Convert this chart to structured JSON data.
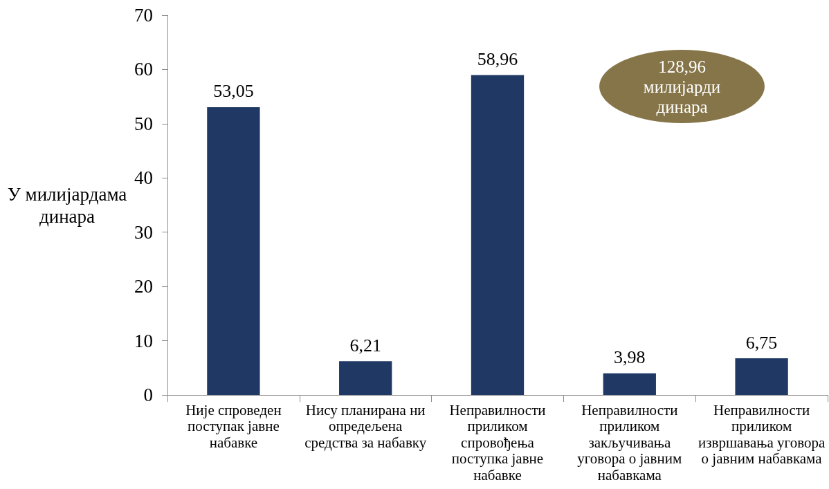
{
  "chart_data": {
    "type": "bar",
    "categories": [
      "Није спроведен поступак јавне набавке",
      "Нису планирана ни опредељена средства за набавку",
      "Неправилности приликом спровођења поступка јавне набавке",
      "Неправилности приликом закључивања уговора о јавним набавкама",
      "Неправилности приликом извршавања уговора о јавним набавкама"
    ],
    "values": [
      53.05,
      6.21,
      58.96,
      3.98,
      6.75
    ],
    "value_labels": [
      "53,05",
      "6,21",
      "58,96",
      "3,98",
      "6,75"
    ],
    "color": "#1f3864",
    "ylabel": "У милијардама динара",
    "ylim": [
      0,
      70
    ],
    "yticks": [
      0,
      10,
      20,
      30,
      40,
      50,
      60,
      70
    ],
    "grid": false,
    "annotations": [
      "128,96 милијарди динара"
    ]
  }
}
